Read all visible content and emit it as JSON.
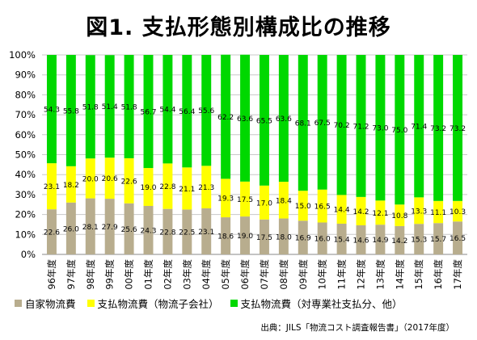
{
  "title": "図1. 支払形態別構成比の推移",
  "source": "出典：JILS「物流コスト調査報告書」（2017年度）",
  "chart_data": {
    "type": "bar",
    "stacked": true,
    "percent": true,
    "categories": [
      "96年度",
      "97年度",
      "98年度",
      "99年度",
      "00年度",
      "01年度",
      "02年度",
      "03年度",
      "04年度",
      "05年度",
      "06年度",
      "07年度",
      "08年度",
      "09年度",
      "10年度",
      "11年度",
      "12年度",
      "13年度",
      "14年度",
      "15年度",
      "16年度",
      "17年度"
    ],
    "series": [
      {
        "name": "自家物流費",
        "color": "#b8ad8e",
        "values": [
          22.6,
          26.0,
          28.1,
          27.9,
          25.6,
          24.3,
          22.8,
          22.5,
          23.1,
          18.6,
          19.0,
          17.5,
          18.0,
          16.9,
          16.0,
          15.4,
          14.6,
          14.9,
          14.2,
          15.3,
          15.7,
          16.5
        ]
      },
      {
        "name": "支払物流費（物流子会社）",
        "color": "#ffff00",
        "values": [
          23.1,
          18.2,
          20.0,
          20.6,
          22.6,
          19.0,
          22.8,
          21.1,
          21.3,
          19.3,
          17.5,
          17.0,
          18.4,
          15.0,
          16.5,
          14.4,
          14.2,
          12.1,
          10.8,
          13.3,
          11.1,
          10.3
        ]
      },
      {
        "name": "支払物流費（対専業社支払分、他）",
        "color": "#00d800",
        "values": [
          54.3,
          55.8,
          51.8,
          51.4,
          51.8,
          56.7,
          54.4,
          56.4,
          55.6,
          62.2,
          63.6,
          65.5,
          63.6,
          68.1,
          67.5,
          70.2,
          71.2,
          73.0,
          75.0,
          71.4,
          73.2,
          73.2
        ]
      }
    ],
    "yticks": [
      "0%",
      "10%",
      "20%",
      "30%",
      "40%",
      "50%",
      "60%",
      "70%",
      "80%",
      "90%",
      "100%"
    ],
    "ylim": [
      0,
      100
    ],
    "grid": true,
    "legend_position": "bottom"
  }
}
